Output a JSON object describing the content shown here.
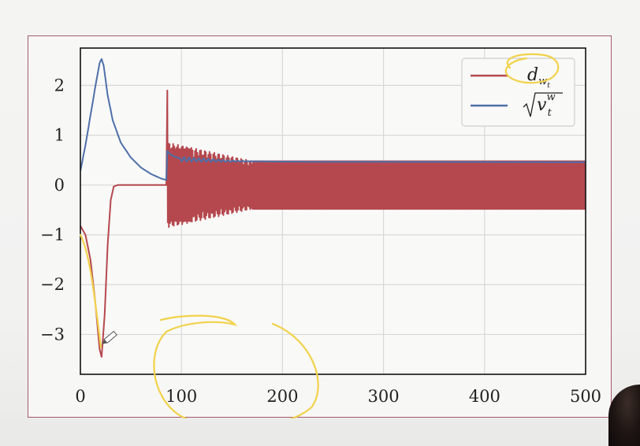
{
  "chart_data": {
    "type": "line",
    "xlim": [
      0,
      500
    ],
    "ylim": [
      -3.8,
      2.75
    ],
    "x_ticks": [
      0,
      100,
      200,
      300,
      400,
      500
    ],
    "y_ticks": [
      2,
      1,
      0,
      -1,
      -2,
      -3
    ],
    "x_tick_labels": [
      "0",
      "100",
      "200",
      "300",
      "400",
      "500"
    ],
    "y_tick_labels": [
      "2",
      "1",
      "0",
      "−1",
      "−2",
      "−3"
    ],
    "grid": true,
    "legend_position": "top-right",
    "series": [
      {
        "name": "d_{w_t}",
        "color": "#b5484e",
        "points": [
          [
            0,
            -0.82
          ],
          [
            5,
            -1.0
          ],
          [
            10,
            -1.5
          ],
          [
            15,
            -2.4
          ],
          [
            19,
            -3.3
          ],
          [
            21,
            -3.45
          ],
          [
            24,
            -2.6
          ],
          [
            27,
            -1.2
          ],
          [
            30,
            -0.3
          ],
          [
            33,
            -0.03
          ],
          [
            37,
            0
          ],
          [
            85,
            0
          ],
          [
            86,
            1.9
          ],
          [
            86.5,
            -0.75
          ],
          [
            88,
            0.2
          ],
          [
            90,
            -0.5
          ],
          [
            100,
            0.1
          ],
          [
            200,
            0
          ],
          [
            500,
            0
          ]
        ],
        "oscillation": {
          "start": 87,
          "end": 500,
          "settled_amplitude": 0.48,
          "initial_amplitude": 0.85,
          "decay_until": 170
        }
      },
      {
        "name": "sqrt(v_t^w)",
        "color": "#4f6fa8",
        "points": [
          [
            0,
            0.28
          ],
          [
            5,
            0.8
          ],
          [
            10,
            1.4
          ],
          [
            15,
            2.0
          ],
          [
            19,
            2.45
          ],
          [
            21,
            2.53
          ],
          [
            23,
            2.4
          ],
          [
            27,
            1.8
          ],
          [
            32,
            1.3
          ],
          [
            40,
            0.85
          ],
          [
            50,
            0.55
          ],
          [
            60,
            0.35
          ],
          [
            70,
            0.22
          ],
          [
            80,
            0.13
          ],
          [
            85,
            0.1
          ],
          [
            86,
            0.68
          ],
          [
            90,
            0.6
          ],
          [
            100,
            0.52
          ],
          [
            120,
            0.5
          ],
          [
            150,
            0.48
          ],
          [
            200,
            0.47
          ],
          [
            500,
            0.46
          ]
        ],
        "oscillation": {
          "start": 100,
          "end": 170,
          "amplitude": 0.05
        }
      }
    ]
  },
  "legend": {
    "entries": [
      {
        "label_main": "d",
        "label_sub": "w",
        "label_subsub": "t"
      },
      {
        "label_main": "v",
        "label_sup": "w",
        "label_sub": "t"
      }
    ]
  }
}
